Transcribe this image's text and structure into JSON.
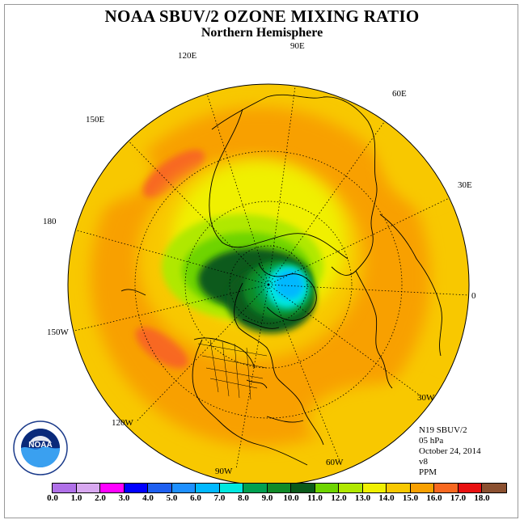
{
  "title": "NOAA SBUV/2 OZONE MIXING RATIO",
  "subtitle": "Northern Hemisphere",
  "longitude_labels": [
    "90E",
    "60E",
    "30E",
    "0",
    "30W",
    "60W",
    "90W",
    "120W",
    "150W",
    "180",
    "150E",
    "120E"
  ],
  "info": {
    "instrument": "N19 SBUV/2",
    "pressure": "05 hPa",
    "date": "October 24, 2014",
    "version": "v8",
    "units": "PPM"
  },
  "colorbar": {
    "ticks": [
      "0.0",
      "1.0",
      "2.0",
      "3.0",
      "4.0",
      "5.0",
      "6.0",
      "7.0",
      "8.0",
      "9.0",
      "10.0",
      "11.0",
      "12.0",
      "13.0",
      "14.0",
      "15.0",
      "16.0",
      "17.0",
      "18.0"
    ],
    "colors": [
      "#b070e8",
      "#d8a8f0",
      "#ff00ff",
      "#0000ff",
      "#1e5ff0",
      "#1e90ff",
      "#00b8ff",
      "#00e8e0",
      "#00a050",
      "#108a28",
      "#0a5a1a",
      "#6ed400",
      "#b0e800",
      "#f0f000",
      "#f8c800",
      "#f8a000",
      "#f86820",
      "#e81010",
      "#8b5030"
    ]
  },
  "logo_text": "NOAA"
}
